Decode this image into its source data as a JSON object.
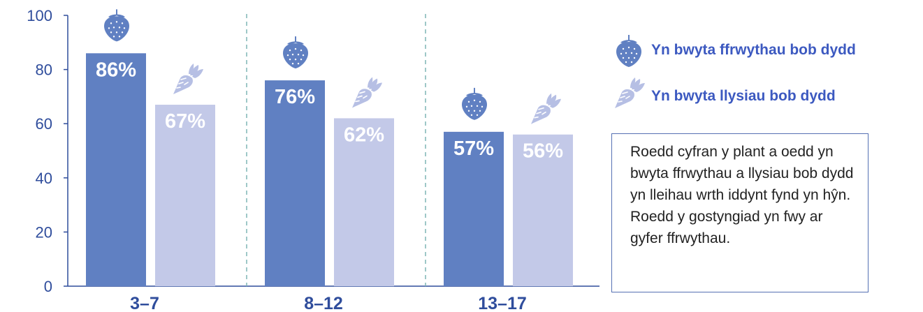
{
  "chart_data": {
    "type": "bar",
    "categories": [
      "3–7",
      "8–12",
      "13–17"
    ],
    "series": [
      {
        "name": "Yn bwyta ffrwythau bob dydd",
        "values": [
          86,
          76,
          57
        ],
        "labels": [
          "86%",
          "76%",
          "57%"
        ],
        "color": "#6080c2",
        "icon": "strawberry-icon"
      },
      {
        "name": "Yn bwyta llysiau bob dydd",
        "values": [
          67,
          62,
          56
        ],
        "labels": [
          "67%",
          "62%",
          "56%"
        ],
        "color": "#c3c9e8",
        "icon": "carrot-icon"
      }
    ],
    "ylim": [
      0,
      100
    ],
    "yticks": [
      0,
      20,
      40,
      60,
      80,
      100
    ],
    "xlabel": "",
    "ylabel": "",
    "grid": false,
    "category_separators": "dashed",
    "legend_position": "right"
  },
  "note": "Roedd cyfran y plant a oedd yn bwyta ffrwythau a llysiau bob dydd yn lleihau wrth iddynt fynd yn hŷn. Roedd y gostyngiad yn fwy ar gyfer ffrwythau.",
  "colors": {
    "axis": "#2f4d9c",
    "separator": "#7fb5b5",
    "fruit_icon": "#6080c2",
    "veg_icon": "#b6bfe4"
  }
}
